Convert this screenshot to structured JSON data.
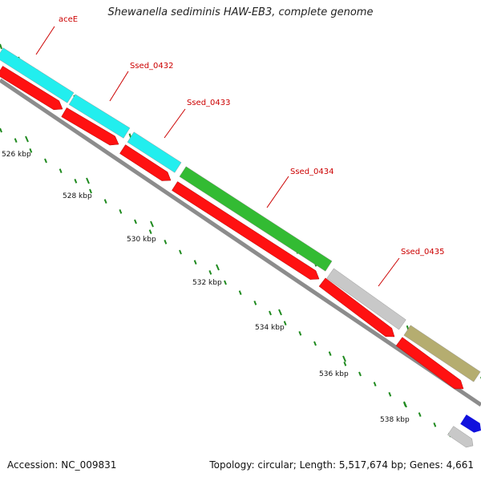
{
  "title": "Shewanella sediminis HAW-EB3, complete genome",
  "footer": {
    "accession": "Accession: NC_009831",
    "summary": "Topology: circular; Length: 5,517,674 bp; Genes: 4,661"
  },
  "colors": {
    "cds": "#ff1111",
    "backbone": "#8c8c8c",
    "tick": "#1f8a1f",
    "label": "#cc0000",
    "cyan": "#22eeee",
    "green": "#33bb33",
    "gray": "#c8c8c8",
    "olive": "#b5ad70",
    "blue": "#1111dd"
  },
  "genes": [
    {
      "name": "aceE",
      "color": "cyan"
    },
    {
      "name": "Ssed_0432",
      "color": "cyan"
    },
    {
      "name": "Ssed_0433",
      "color": "cyan"
    },
    {
      "name": "Ssed_0434",
      "color": "green"
    },
    {
      "name": "Ssed_0435",
      "color": "gray"
    },
    {
      "name": "",
      "color": "olive"
    },
    {
      "name": "",
      "color": "blue"
    }
  ],
  "scale_labels": [
    "526 kbp",
    "528 kbp",
    "530 kbp",
    "532 kbp",
    "534 kbp",
    "536 kbp",
    "538 kbp"
  ]
}
